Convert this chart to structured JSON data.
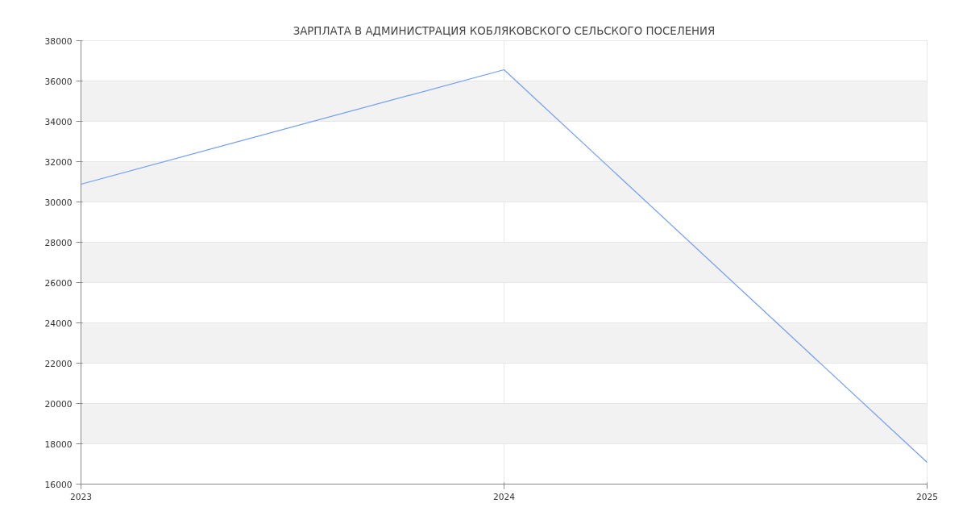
{
  "chart_data": {
    "type": "line",
    "title": "ЗАРПЛАТА В АДМИНИСТРАЦИЯ КОБЛЯКОВСКОГО СЕЛЬСКОГО ПОСЕЛЕНИЯ",
    "x": [
      2023,
      2024,
      2025
    ],
    "series": [
      {
        "color": "#6f9ef5",
        "values": [
          30880,
          36560,
          17080
        ]
      }
    ],
    "xlim": [
      2023,
      2025
    ],
    "xticks": [
      2023,
      2024,
      2025
    ],
    "ylim": [
      16000,
      38000
    ],
    "yticks": [
      16000,
      18000,
      20000,
      22000,
      24000,
      26000,
      28000,
      30000,
      32000,
      34000,
      36000,
      38000
    ],
    "grid": true,
    "line_style": "solid"
  }
}
